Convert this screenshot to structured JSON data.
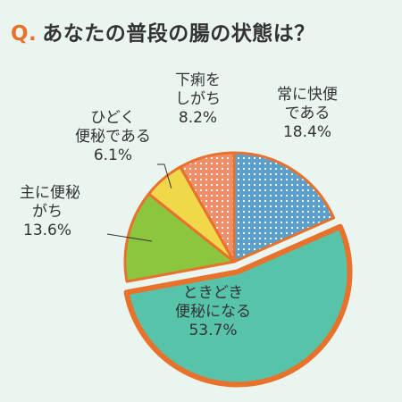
{
  "header": {
    "q_mark": "Q.",
    "question": "あなたの普段の腸の状態は？"
  },
  "colors": {
    "background": "#eaf5ef",
    "accent": "#e8722c",
    "slice_regular": "#5b9fca",
    "slice_sometimes": "#57c3a9",
    "slice_mostly_constipated": "#8cc63f",
    "slice_severe_constipation": "#f0d84a",
    "slice_diarrhea": "#ee8f6a"
  },
  "chart_data": {
    "type": "pie",
    "slices": [
      {
        "label": "常に快便である",
        "value": 18.4,
        "lines": [
          "常に快便",
          "である",
          "18.4%"
        ]
      },
      {
        "label": "ときどき便秘になる",
        "value": 53.7,
        "highlight": true,
        "lines": [
          "ときどき",
          "便秘になる",
          "53.7%"
        ]
      },
      {
        "label": "主に便秘がち",
        "value": 13.6,
        "lines": [
          "主に便秘",
          "がち",
          "13.6%"
        ]
      },
      {
        "label": "ひどく便秘である",
        "value": 6.1,
        "lines": [
          "ひどく",
          "便秘である",
          "6.1%"
        ]
      },
      {
        "label": "下痢をしがち",
        "value": 8.2,
        "lines": [
          "下痢を",
          "しがち",
          "8.2%"
        ]
      }
    ]
  }
}
